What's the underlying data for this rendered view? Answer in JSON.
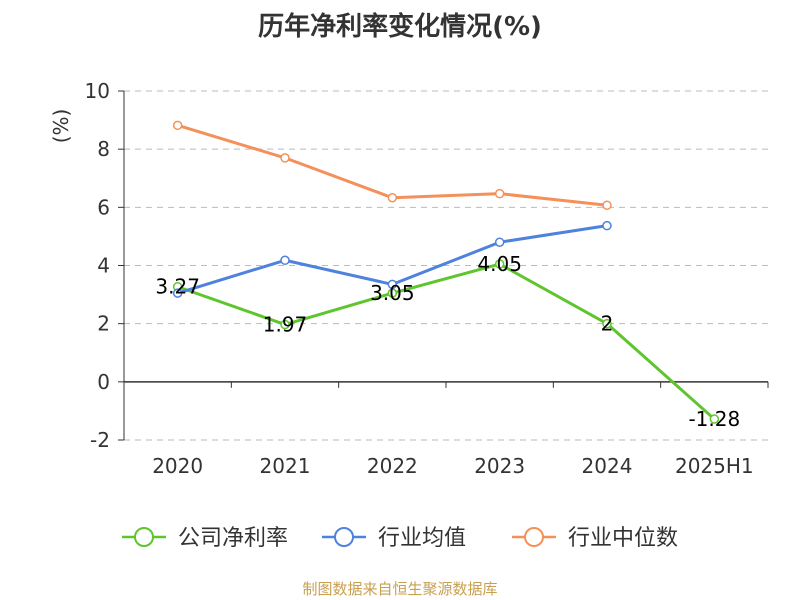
{
  "title": "历年净利率变化情况(%)",
  "footer": "制图数据来自恒生聚源数据库",
  "colors": {
    "footer": "#c8a050",
    "ylabel": "#dd2222",
    "grid": "#bbbbbb",
    "axis": "#333333"
  },
  "chart_data": {
    "type": "line",
    "title": "历年净利率变化情况(%)",
    "ylabel": "(%)",
    "xlabel": "",
    "categories": [
      "2020",
      "2021",
      "2022",
      "2023",
      "2024",
      "2025H1"
    ],
    "ylim": [
      -2,
      10
    ],
    "yticks": [
      "10",
      "8",
      "6",
      "4",
      "2",
      "0",
      "-2"
    ],
    "grid": true,
    "legend_position": "bottom",
    "series": [
      {
        "name": "公司净利率",
        "color": "#5fc52e",
        "values": [
          3.27,
          1.97,
          3.05,
          4.05,
          2,
          -1.28
        ],
        "labels": [
          "3.27",
          "1.97",
          "3.05",
          "4.05",
          "2",
          "-1.28"
        ]
      },
      {
        "name": "行业均值",
        "color": "#4f82dc",
        "values": [
          3.05,
          4.18,
          3.35,
          4.8,
          5.37,
          null
        ]
      },
      {
        "name": "行业中位数",
        "color": "#f4905a",
        "values": [
          8.82,
          7.7,
          6.33,
          6.47,
          6.07,
          null
        ]
      }
    ]
  }
}
